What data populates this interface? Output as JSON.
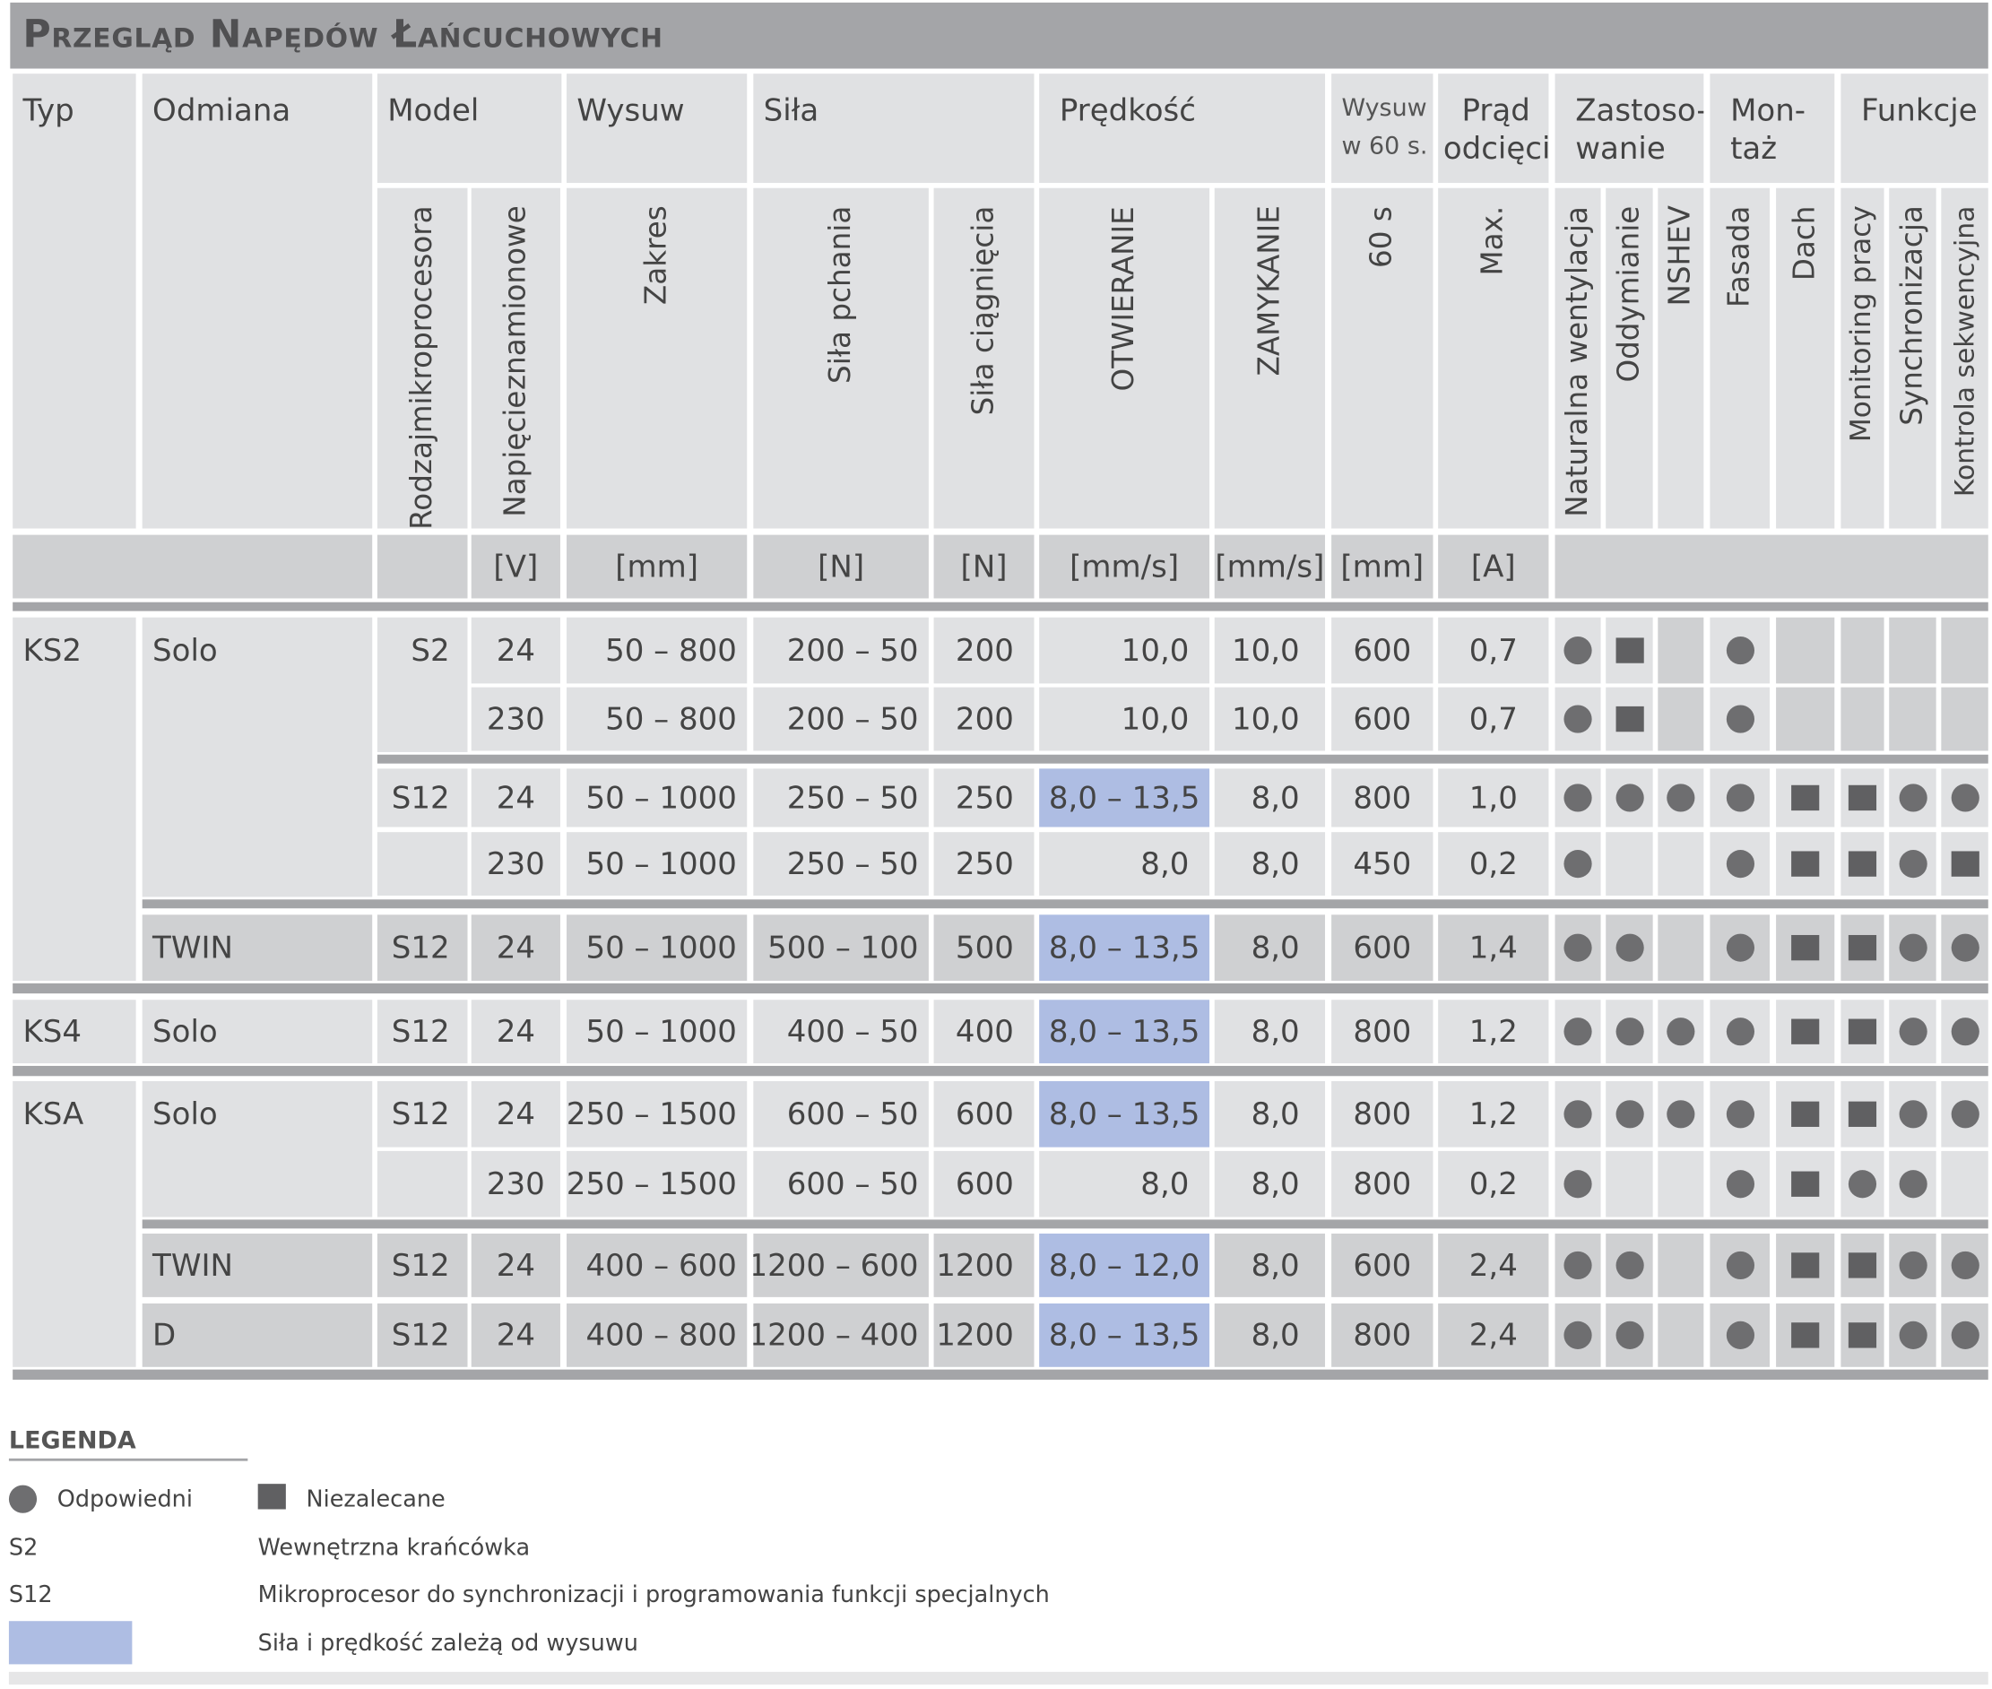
{
  "title": "Przegląd Napędów Łańcuchowych",
  "headers": {
    "typ": "Typ",
    "odmiana": "Odmiana",
    "model": "Model",
    "wysuw": "Wysuw",
    "sila": "Siła",
    "predkosc": "Prędkość",
    "wysuw60_line1": "Wysuw",
    "wysuw60_line2": "w 60 s.",
    "prad_line1": "Prąd",
    "prad_line2": "odcięcia",
    "zastosowanie_line1": "Zastoso-",
    "zastosowanie_line2": "wanie",
    "montaz_line1": "Mon-",
    "montaz_line2": "taż",
    "funkcje": "Funkcje"
  },
  "subheaders": {
    "rodzaj_line1": "Rodzaj",
    "rodzaj_line2": "mikroprocesora",
    "napiecie_line1": "Napięcie",
    "napiecie_line2": "znamionowe",
    "zakres": "Zakres",
    "sila_pchania": "Siła pchania",
    "sila_ciagniecia": "Siła ciągnięcia",
    "otwieranie": "OTWIERANIE",
    "zamykanie": "ZAMYKANIE",
    "s60": "60 s",
    "max": "Max.",
    "naturalna": "Naturalna wentylacja",
    "oddymianie": "Oddymianie",
    "nshev": "NSHEV",
    "fasada": "Fasada",
    "dach": "Dach",
    "monitoring": "Monitoring pracy",
    "synchronizacja": "Synchronizacja",
    "kontrola": "Kontrola sekwencyjna"
  },
  "units": {
    "v": "[V]",
    "mm": "[mm]",
    "n1": "[N]",
    "n2": "[N]",
    "mms1": "[mm/s]",
    "mms2": "[mm/s]",
    "mm60": "[mm]",
    "a": "[A]"
  },
  "groups": {
    "ks2": {
      "typ": "KS2",
      "solo": "Solo",
      "twin": "TWIN"
    },
    "ks4": {
      "typ": "KS4",
      "solo": "Solo"
    },
    "ksa": {
      "typ": "KSA",
      "solo": "Solo",
      "twin": "TWIN",
      "d": "D"
    }
  },
  "rows": [
    {
      "model": "S2",
      "v": "24",
      "zakres": "50 – 800",
      "pch": "200 – 50",
      "cia": "200",
      "otw": "10,0",
      "zam": "10,0",
      "w60": "600",
      "a": "0,7",
      "sym": [
        "dot",
        "sq",
        "",
        "dot",
        "",
        "",
        "",
        ""
      ]
    },
    {
      "model": "",
      "v": "230",
      "zakres": "50 – 800",
      "pch": "200 – 50",
      "cia": "200",
      "otw": "10,0",
      "zam": "10,0",
      "w60": "600",
      "a": "0,7",
      "sym": [
        "dot",
        "sq",
        "",
        "dot",
        "",
        "",
        "",
        ""
      ]
    },
    {
      "model": "S12",
      "v": "24",
      "zakres": "50 – 1000",
      "pch": "250 – 50",
      "cia": "250",
      "otw": "8,0 – 13,5",
      "zam": "8,0",
      "w60": "800",
      "a": "1,0",
      "sym": [
        "dot",
        "dot",
        "dot",
        "dot",
        "sq",
        "sq",
        "dot",
        "dot"
      ]
    },
    {
      "model": "",
      "v": "230",
      "zakres": "50 – 1000",
      "pch": "250 – 50",
      "cia": "250",
      "otw": "8,0",
      "zam": "8,0",
      "w60": "450",
      "a": "0,2",
      "sym": [
        "dot",
        "",
        "",
        "dot",
        "sq",
        "sq",
        "dot",
        "sq"
      ]
    },
    {
      "model": "S12",
      "v": "24",
      "zakres": "50 – 1000",
      "pch": "500 – 100",
      "cia": "500",
      "otw": "8,0 – 13,5",
      "zam": "8,0",
      "w60": "600",
      "a": "1,4",
      "sym": [
        "dot",
        "dot",
        "",
        "dot",
        "sq",
        "sq",
        "dot",
        "dot"
      ]
    },
    {
      "model": "S12",
      "v": "24",
      "zakres": "50 – 1000",
      "pch": "400 – 50",
      "cia": "400",
      "otw": "8,0 – 13,5",
      "zam": "8,0",
      "w60": "800",
      "a": "1,2",
      "sym": [
        "dot",
        "dot",
        "dot",
        "dot",
        "sq",
        "sq",
        "dot",
        "dot"
      ]
    },
    {
      "model": "S12",
      "v": "24",
      "zakres": "250 – 1500",
      "pch": "600 – 50",
      "cia": "600",
      "otw": "8,0 – 13,5",
      "zam": "8,0",
      "w60": "800",
      "a": "1,2",
      "sym": [
        "dot",
        "dot",
        "dot",
        "dot",
        "sq",
        "sq",
        "dot",
        "dot"
      ]
    },
    {
      "model": "",
      "v": "230",
      "zakres": "250 – 1500",
      "pch": "600 – 50",
      "cia": "600",
      "otw": "8,0",
      "zam": "8,0",
      "w60": "800",
      "a": "0,2",
      "sym": [
        "dot",
        "",
        "",
        "dot",
        "sq",
        "dot",
        "dot",
        ""
      ]
    },
    {
      "model": "S12",
      "v": "24",
      "zakres": "400 – 600",
      "pch": "1200 – 600",
      "cia": "1200",
      "otw": "8,0 – 12,0",
      "zam": "8,0",
      "w60": "600",
      "a": "2,4",
      "sym": [
        "dot",
        "dot",
        "",
        "dot",
        "sq",
        "sq",
        "dot",
        "dot"
      ]
    },
    {
      "model": "S12",
      "v": "24",
      "zakres": "400 – 800",
      "pch": "1200 – 400",
      "cia": "1200",
      "otw": "8,0 – 13,5",
      "zam": "8,0",
      "w60": "800",
      "a": "2,4",
      "sym": [
        "dot",
        "dot",
        "",
        "dot",
        "sq",
        "sq",
        "dot",
        "dot"
      ]
    }
  ],
  "legend": {
    "title": "LEGENDA",
    "odpowiedni": "Odpowiedni",
    "niezalecane": "Niezalecane",
    "s2": "S2",
    "s2_desc": "Wewnętrzna krańcówka",
    "s12": "S12",
    "s12_desc": "Mikroprocesor do synchronizacji i programowania funkcji specjalnych",
    "blue_desc": "Siła i prędkość zależą od wysuwu"
  },
  "colors": {
    "header_bar": "#a4a5a8",
    "cell_light": "#e0e1e3",
    "cell_dark": "#cfd0d2",
    "highlight_blue": "#aebde3",
    "symbol": "#6e6e70"
  }
}
